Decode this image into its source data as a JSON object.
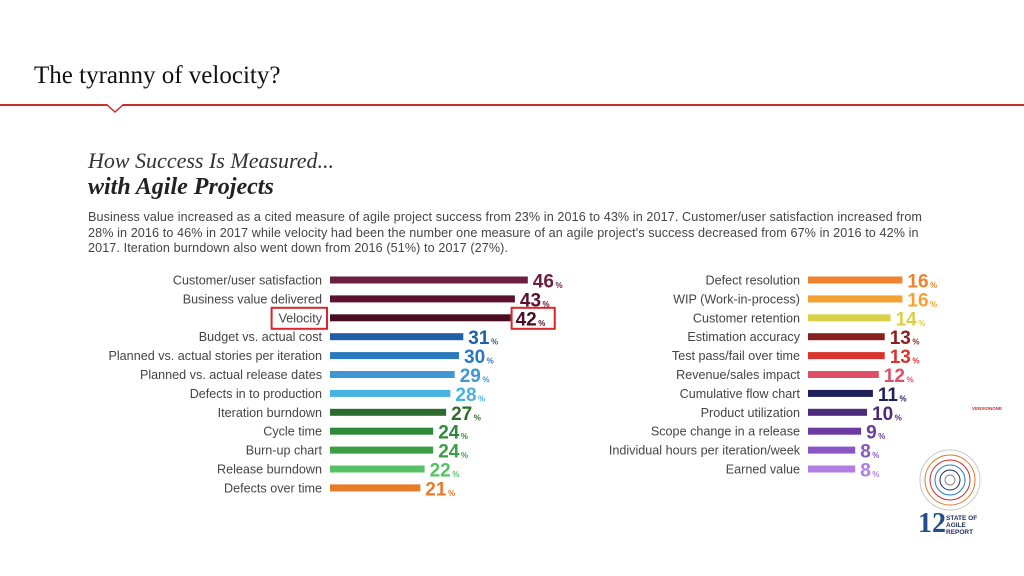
{
  "slide": {
    "title": "The tyranny of velocity?"
  },
  "infographic": {
    "heading_line1": "How Success Is Measured...",
    "heading_line2": "with Agile Projects",
    "description": "Business value increased as a cited measure of agile project success from 23% in 2016 to 43% in 2017. Customer/user satisfaction increased from 28% in 2016 to 46% in 2017 while velocity had been the number one measure of an agile project's success decreased from 67% in 2016 to 42% in 2017. Iteration burndown also went down from 2016 (51%) to 2017 (27%)."
  },
  "report": {
    "year": "12",
    "line1": "STATE OF",
    "line2": "AGILE",
    "line3": "REPORT",
    "vendor": "VERSIONONE"
  },
  "colors": {
    "accent_red": "#c9302c",
    "highlight_box": "#d9262c"
  },
  "chart_data": [
    {
      "type": "bar",
      "orientation": "horizontal",
      "value_suffix": "%",
      "highlighted": "Velocity",
      "categories": [
        "Customer/user satisfaction",
        "Business value delivered",
        "Velocity",
        "Budget vs. actual cost",
        "Planned vs. actual stories per iteration",
        "Planned vs. actual release dates",
        "Defects in to production",
        "Iteration burndown",
        "Cycle time",
        "Burn-up chart",
        "Release burndown",
        "Defects over time"
      ],
      "values": [
        46,
        43,
        42,
        31,
        30,
        29,
        28,
        27,
        24,
        24,
        22,
        21
      ],
      "colors": [
        "#6b1f3e",
        "#5a1230",
        "#4a0d22",
        "#1f5fa8",
        "#2a78c0",
        "#3f96d2",
        "#48b3e0",
        "#2e6b2e",
        "#2e8a3a",
        "#3c9d45",
        "#57c163",
        "#e87a2a"
      ]
    },
    {
      "type": "bar",
      "orientation": "horizontal",
      "value_suffix": "%",
      "categories": [
        "Defect resolution",
        "WIP (Work-in-process)",
        "Customer retention",
        "Estimation accuracy",
        "Test pass/fail over time",
        "Revenue/sales impact",
        "Cumulative flow chart",
        "Product utilization",
        "Scope change in a release",
        "Individual hours per iteration/week",
        "Earned value"
      ],
      "values": [
        16,
        16,
        14,
        13,
        13,
        12,
        11,
        10,
        9,
        8,
        8
      ],
      "colors": [
        "#f0822d",
        "#f5a031",
        "#d8d046",
        "#8a1f1f",
        "#d8352e",
        "#e04e66",
        "#1f1f5a",
        "#4d2a7a",
        "#6a3aa0",
        "#8b55c6",
        "#b07ee0"
      ]
    }
  ]
}
